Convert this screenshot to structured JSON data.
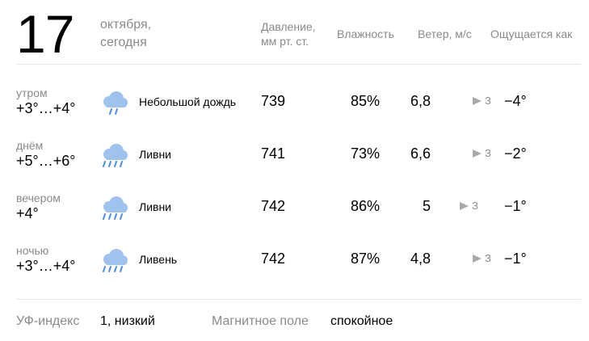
{
  "header": {
    "day": "17",
    "month": "октября,",
    "relative": "сегодня"
  },
  "columns": {
    "pressure_line1": "Давление,",
    "pressure_line2": "мм рт. ст.",
    "humidity": "Влажность",
    "wind": "Ветер, м/с",
    "feels_like": "Ощущается как"
  },
  "rows": [
    {
      "period": "утром",
      "temp": "+3°…+4°",
      "icon": "light-rain-cloud-icon",
      "condition": "Небольшой дождь",
      "pressure": "739",
      "humidity": "85%",
      "wind_speed": "6,8",
      "wind_dir": "З",
      "feels_like": "−4°"
    },
    {
      "period": "днём",
      "temp": "+5°…+6°",
      "icon": "showers-cloud-icon",
      "condition": "Ливни",
      "pressure": "741",
      "humidity": "73%",
      "wind_speed": "6,6",
      "wind_dir": "З",
      "feels_like": "−2°"
    },
    {
      "period": "вечером",
      "temp": "+4°",
      "icon": "showers-cloud-icon",
      "condition": "Ливни",
      "pressure": "742",
      "humidity": "86%",
      "wind_speed": "5",
      "wind_dir": "З",
      "feels_like": "−1°"
    },
    {
      "period": "ночью",
      "temp": "+3°…+4°",
      "icon": "heavy-rain-cloud-icon",
      "condition": "Ливень",
      "pressure": "742",
      "humidity": "87%",
      "wind_speed": "4,8",
      "wind_dir": "З",
      "feels_like": "−1°"
    }
  ],
  "footer": {
    "uv_label": "УФ-индекс",
    "uv_value": "1, низкий",
    "magnetic_label": "Магнитное поле",
    "magnetic_value": "спокойное"
  },
  "colors": {
    "muted_text": "#8a8a8a",
    "cloud": "#9fc3ec",
    "rain": "#4f8fdc",
    "wind_arrow": "#a9a9a9"
  }
}
